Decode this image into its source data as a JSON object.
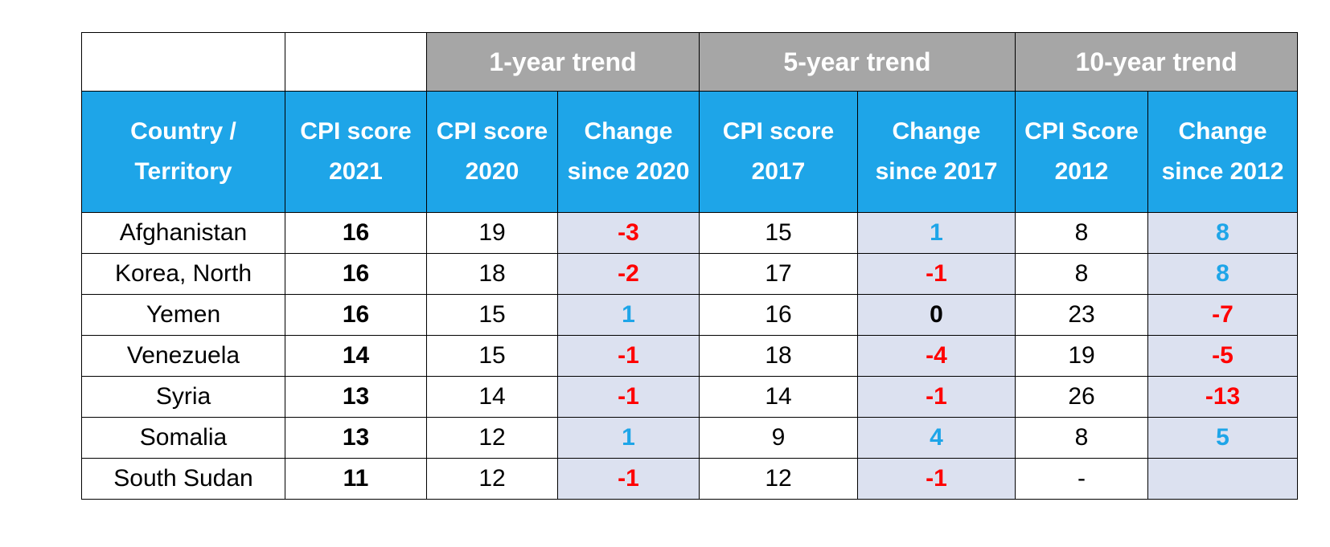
{
  "table": {
    "group_headers": [
      "",
      "",
      "1-year trend",
      "5-year trend",
      "10-year trend"
    ],
    "column_headers": [
      "Country / Territory",
      "CPI score 2021",
      "CPI score 2020",
      "Change since 2020",
      "CPI score 2017",
      "Change since 2017",
      "CPI Score 2012",
      "Change since 2012"
    ],
    "rows": [
      {
        "country": "Afghanistan",
        "cpi_2021": "16",
        "cpi_2020": "19",
        "change_2020": "-3",
        "cpi_2017": "15",
        "change_2017": "1",
        "cpi_2012": "8",
        "change_2012": "8"
      },
      {
        "country": "Korea, North",
        "cpi_2021": "16",
        "cpi_2020": "18",
        "change_2020": "-2",
        "cpi_2017": "17",
        "change_2017": "-1",
        "cpi_2012": "8",
        "change_2012": "8"
      },
      {
        "country": "Yemen",
        "cpi_2021": "16",
        "cpi_2020": "15",
        "change_2020": "1",
        "cpi_2017": "16",
        "change_2017": "0",
        "cpi_2012": "23",
        "change_2012": "-7"
      },
      {
        "country": "Venezuela",
        "cpi_2021": "14",
        "cpi_2020": "15",
        "change_2020": "-1",
        "cpi_2017": "18",
        "change_2017": "-4",
        "cpi_2012": "19",
        "change_2012": "-5"
      },
      {
        "country": "Syria",
        "cpi_2021": "13",
        "cpi_2020": "14",
        "change_2020": "-1",
        "cpi_2017": "14",
        "change_2017": "-1",
        "cpi_2012": "26",
        "change_2012": "-13"
      },
      {
        "country": "Somalia",
        "cpi_2021": "13",
        "cpi_2020": "12",
        "change_2020": "1",
        "cpi_2017": "9",
        "change_2017": "4",
        "cpi_2012": "8",
        "change_2012": "5"
      },
      {
        "country": "South Sudan",
        "cpi_2021": "11",
        "cpi_2020": "12",
        "change_2020": "-1",
        "cpi_2017": "12",
        "change_2017": "-1",
        "cpi_2012": "-",
        "change_2012": ""
      }
    ]
  },
  "colors": {
    "group_header_bg": "#a6a6a6",
    "column_header_bg": "#1ea5e8",
    "change_cell_bg": "#dce1f0",
    "positive_change": "#1ea5e8",
    "negative_change": "#ff0000"
  }
}
